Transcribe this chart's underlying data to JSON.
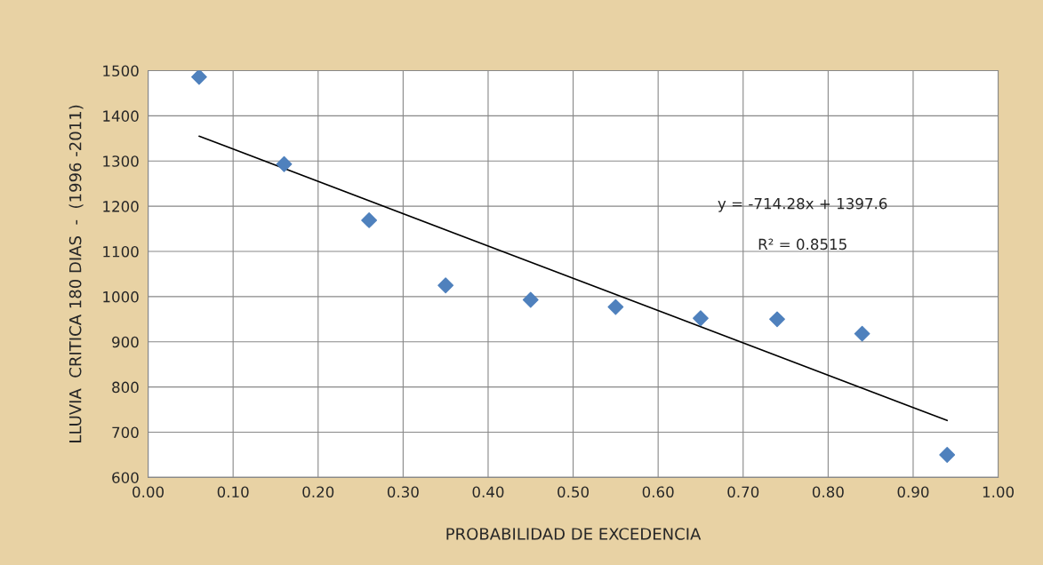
{
  "chart_data": {
    "type": "scatter",
    "xlabel": "PROBABILIDAD DE EXCEDENCIA",
    "ylabel": "LLUVIA  CRITICA 180 DIAS  -  (1996 -2011)",
    "series": [
      {
        "color": "#4f81bd",
        "marker": "diamond",
        "x": [
          0.06,
          0.16,
          0.26,
          0.35,
          0.45,
          0.55,
          0.65,
          0.74,
          0.84,
          0.94
        ],
        "values": [
          1486,
          1293,
          1169,
          1025,
          993,
          977,
          952,
          950,
          918,
          650
        ]
      },
      {
        "type": "line",
        "color": "#000000",
        "marker": "none",
        "line_style": "solid",
        "x": [
          0.06,
          0.94
        ],
        "values": [
          1355,
          726
        ]
      }
    ],
    "annotations": [
      "y = -714.28x + 1397.6",
      "R² = 0.8515"
    ],
    "xlim": [
      0,
      1
    ],
    "xticks": [
      {
        "value": 0,
        "label": "0.00"
      },
      {
        "value": 0.1,
        "label": "0.10"
      },
      {
        "value": 0.2,
        "label": "0.20"
      },
      {
        "value": 0.3,
        "label": "0.30"
      },
      {
        "value": 0.4,
        "label": "0.40"
      },
      {
        "value": 0.5,
        "label": "0.50"
      },
      {
        "value": 0.6,
        "label": "0.60"
      },
      {
        "value": 0.7,
        "label": "0.70"
      },
      {
        "value": 0.8,
        "label": "0.80"
      },
      {
        "value": 0.9,
        "label": "0.90"
      },
      {
        "value": 1,
        "label": "1.00"
      }
    ],
    "ylim": [
      600,
      1500
    ],
    "yticks": [
      600,
      700,
      800,
      900,
      1000,
      1100,
      1200,
      1300,
      1400,
      1500
    ],
    "grid": true,
    "legend": false
  }
}
